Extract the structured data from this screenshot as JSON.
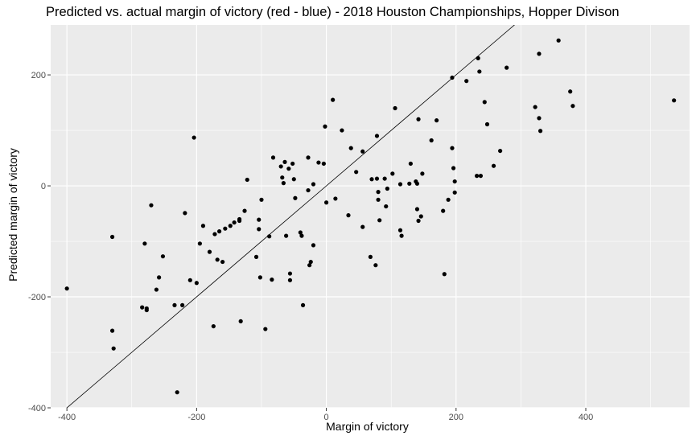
{
  "chart_data": {
    "type": "scatter",
    "title": "Predicted vs. actual margin of victory (red - blue) - 2018 Houston Championships, Hopper Divison",
    "xlabel": "Margin of victory",
    "ylabel": "Predicted margin of victory",
    "xlim": [
      -425,
      560
    ],
    "ylim": [
      -400,
      290
    ],
    "x_ticks": [
      -400,
      -200,
      0,
      200,
      400
    ],
    "y_ticks": [
      -400,
      -200,
      0,
      200
    ],
    "grid": true,
    "panel_background": "#ebebeb",
    "point_color": "#000000",
    "reference_line": {
      "slope": 1,
      "intercept": 0
    },
    "points": [
      [
        -400,
        -185
      ],
      [
        -330,
        -92
      ],
      [
        -330,
        -261
      ],
      [
        -328,
        -293
      ],
      [
        -284,
        -219
      ],
      [
        -280,
        -104
      ],
      [
        -277,
        -221
      ],
      [
        -277,
        -224
      ],
      [
        -270,
        -35
      ],
      [
        -262,
        -187
      ],
      [
        -258,
        -165
      ],
      [
        -252,
        -127
      ],
      [
        -234,
        -215
      ],
      [
        -230,
        -372
      ],
      [
        -222,
        -215
      ],
      [
        -218,
        -49
      ],
      [
        -210,
        -170
      ],
      [
        -204,
        87
      ],
      [
        -200,
        -175
      ],
      [
        -195,
        -104
      ],
      [
        -190,
        -72
      ],
      [
        -180,
        -119
      ],
      [
        -174,
        -253
      ],
      [
        -172,
        -87
      ],
      [
        -168,
        -133
      ],
      [
        -165,
        -82
      ],
      [
        -160,
        -137
      ],
      [
        -156,
        -77
      ],
      [
        -148,
        -72
      ],
      [
        -142,
        -66
      ],
      [
        -134,
        -60
      ],
      [
        -134,
        -63
      ],
      [
        -132,
        -244
      ],
      [
        -126,
        -45
      ],
      [
        -122,
        11
      ],
      [
        -108,
        -128
      ],
      [
        -104,
        -61
      ],
      [
        -104,
        -78
      ],
      [
        -102,
        -165
      ],
      [
        -100,
        -25
      ],
      [
        -94,
        -258
      ],
      [
        -88,
        -91
      ],
      [
        -84,
        -169
      ],
      [
        -82,
        51
      ],
      [
        -70,
        35
      ],
      [
        -68,
        15
      ],
      [
        -66,
        5
      ],
      [
        -64,
        43
      ],
      [
        -62,
        -90
      ],
      [
        -58,
        31
      ],
      [
        -56,
        -158
      ],
      [
        -56,
        -170
      ],
      [
        -52,
        40
      ],
      [
        -50,
        12
      ],
      [
        -48,
        -22
      ],
      [
        -40,
        -84
      ],
      [
        -38,
        -90
      ],
      [
        -36,
        -215
      ],
      [
        -28,
        -8
      ],
      [
        -28,
        51
      ],
      [
        -26,
        -143
      ],
      [
        -24,
        -137
      ],
      [
        -20,
        3
      ],
      [
        -20,
        -107
      ],
      [
        -12,
        42
      ],
      [
        -4,
        40
      ],
      [
        -2,
        107
      ],
      [
        0,
        -30
      ],
      [
        10,
        155
      ],
      [
        14,
        -23
      ],
      [
        24,
        100
      ],
      [
        34,
        -53
      ],
      [
        38,
        68
      ],
      [
        46,
        25
      ],
      [
        56,
        -74
      ],
      [
        56,
        62
      ],
      [
        68,
        -128
      ],
      [
        70,
        12
      ],
      [
        76,
        -143
      ],
      [
        78,
        13
      ],
      [
        78,
        90
      ],
      [
        80,
        -11
      ],
      [
        80,
        -25
      ],
      [
        82,
        -62
      ],
      [
        90,
        13
      ],
      [
        92,
        -37
      ],
      [
        94,
        -5
      ],
      [
        102,
        22
      ],
      [
        106,
        140
      ],
      [
        114,
        3
      ],
      [
        114,
        -80
      ],
      [
        116,
        -90
      ],
      [
        128,
        4
      ],
      [
        130,
        40
      ],
      [
        138,
        8
      ],
      [
        140,
        4
      ],
      [
        140,
        -42
      ],
      [
        142,
        120
      ],
      [
        142,
        -63
      ],
      [
        146,
        -55
      ],
      [
        148,
        22
      ],
      [
        162,
        82
      ],
      [
        170,
        118
      ],
      [
        180,
        -45
      ],
      [
        182,
        -159
      ],
      [
        188,
        -25
      ],
      [
        194,
        68
      ],
      [
        194,
        195
      ],
      [
        196,
        32
      ],
      [
        198,
        -12
      ],
      [
        198,
        8
      ],
      [
        216,
        189
      ],
      [
        232,
        18
      ],
      [
        234,
        230
      ],
      [
        236,
        206
      ],
      [
        238,
        18
      ],
      [
        244,
        151
      ],
      [
        248,
        111
      ],
      [
        258,
        36
      ],
      [
        268,
        63
      ],
      [
        278,
        213
      ],
      [
        322,
        142
      ],
      [
        328,
        238
      ],
      [
        328,
        122
      ],
      [
        330,
        99
      ],
      [
        358,
        262
      ],
      [
        376,
        170
      ],
      [
        380,
        144
      ],
      [
        536,
        154
      ]
    ]
  }
}
